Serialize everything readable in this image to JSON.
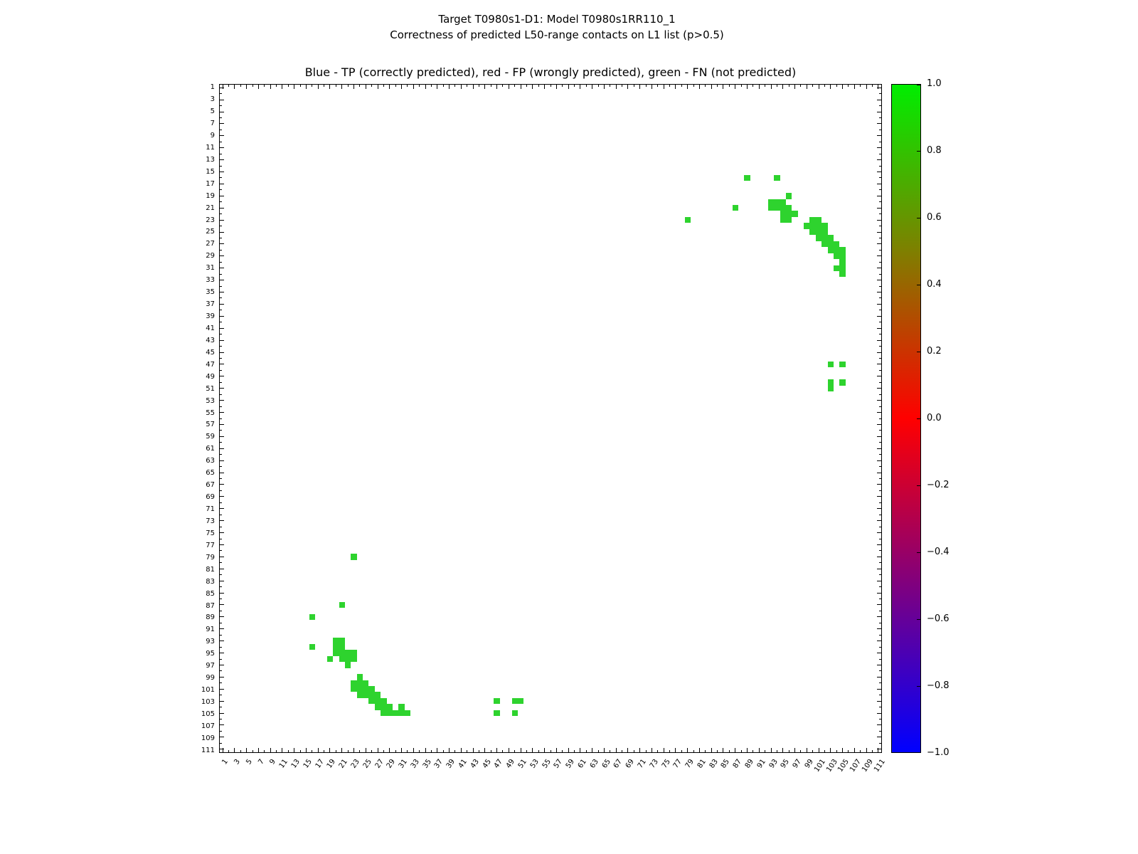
{
  "title": {
    "line1": "Target T0980s1-D1: Model T0980s1RR110_1",
    "line2": "Correctness of predicted L50-range contacts on L1 list (p>0.5)"
  },
  "axes_title": "Blue - TP (correctly predicted), red - FP (wrongly predicted), green - FN (not predicted)",
  "chart_data": {
    "type": "heatmap",
    "title": "Target T0980s1-D1: Model T0980s1RR110_1",
    "subtitle": "Correctness of predicted L50-range contacts on L1 list (p>0.5)",
    "axes_note": "Blue - TP (correctly predicted), red - FP (wrongly predicted), green - FN (not predicted)",
    "x_range": [
      1,
      111
    ],
    "y_range": [
      1,
      111
    ],
    "tick_label_step": 2,
    "grid": false,
    "legend": {
      "blue": "TP (correctly predicted)",
      "red": "FP (wrongly predicted)",
      "green": "FN (not predicted)"
    },
    "fn_color": "#2ed32e",
    "colorbar": {
      "min": -1.0,
      "max": 1.0,
      "tick_labels": [
        "1.0",
        "0.8",
        "0.6",
        "0.4",
        "0.2",
        "0.0",
        "−0.2",
        "−0.4",
        "−0.6",
        "−0.8",
        "−1.0"
      ],
      "gradient_stops": [
        {
          "pos": 0.0,
          "color": "#00ee00"
        },
        {
          "pos": 0.25,
          "color": "#7f7f00"
        },
        {
          "pos": 0.5,
          "color": "#ff0000"
        },
        {
          "pos": 0.75,
          "color": "#7f007f"
        },
        {
          "pos": 1.0,
          "color": "#0000ff"
        }
      ]
    },
    "green_points": [
      [
        89,
        16
      ],
      [
        94,
        16
      ],
      [
        96,
        19
      ],
      [
        87,
        21
      ],
      [
        93,
        20
      ],
      [
        94,
        20
      ],
      [
        95,
        20
      ],
      [
        93,
        21
      ],
      [
        94,
        21
      ],
      [
        95,
        21
      ],
      [
        96,
        21
      ],
      [
        95,
        22
      ],
      [
        96,
        22
      ],
      [
        97,
        22
      ],
      [
        79,
        23
      ],
      [
        95,
        23
      ],
      [
        96,
        23
      ],
      [
        100,
        23
      ],
      [
        101,
        23
      ],
      [
        99,
        24
      ],
      [
        100,
        24
      ],
      [
        101,
        24
      ],
      [
        102,
        24
      ],
      [
        100,
        25
      ],
      [
        101,
        25
      ],
      [
        102,
        25
      ],
      [
        101,
        26
      ],
      [
        102,
        26
      ],
      [
        103,
        26
      ],
      [
        102,
        27
      ],
      [
        103,
        27
      ],
      [
        104,
        27
      ],
      [
        103,
        28
      ],
      [
        104,
        28
      ],
      [
        105,
        28
      ],
      [
        104,
        29
      ],
      [
        105,
        29
      ],
      [
        105,
        30
      ],
      [
        104,
        31
      ],
      [
        105,
        31
      ],
      [
        105,
        32
      ],
      [
        103,
        47
      ],
      [
        105,
        47
      ],
      [
        103,
        50
      ],
      [
        105,
        50
      ],
      [
        103,
        51
      ],
      [
        16,
        89
      ],
      [
        16,
        94
      ],
      [
        19,
        96
      ],
      [
        21,
        87
      ],
      [
        20,
        93
      ],
      [
        20,
        94
      ],
      [
        20,
        95
      ],
      [
        21,
        93
      ],
      [
        21,
        94
      ],
      [
        21,
        95
      ],
      [
        21,
        96
      ],
      [
        22,
        95
      ],
      [
        22,
        96
      ],
      [
        22,
        97
      ],
      [
        23,
        79
      ],
      [
        23,
        95
      ],
      [
        23,
        96
      ],
      [
        23,
        100
      ],
      [
        23,
        101
      ],
      [
        24,
        99
      ],
      [
        24,
        100
      ],
      [
        24,
        101
      ],
      [
        24,
        102
      ],
      [
        25,
        100
      ],
      [
        25,
        101
      ],
      [
        25,
        102
      ],
      [
        26,
        101
      ],
      [
        26,
        102
      ],
      [
        26,
        103
      ],
      [
        27,
        102
      ],
      [
        27,
        103
      ],
      [
        27,
        104
      ],
      [
        28,
        103
      ],
      [
        28,
        104
      ],
      [
        28,
        105
      ],
      [
        29,
        104
      ],
      [
        29,
        105
      ],
      [
        30,
        105
      ],
      [
        31,
        104
      ],
      [
        31,
        105
      ],
      [
        32,
        105
      ],
      [
        47,
        103
      ],
      [
        47,
        105
      ],
      [
        50,
        103
      ],
      [
        50,
        105
      ],
      [
        51,
        103
      ]
    ]
  }
}
